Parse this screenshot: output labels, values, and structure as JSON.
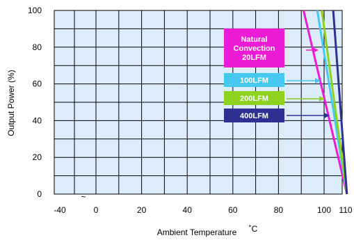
{
  "chart_data": {
    "type": "line",
    "xlabel": "Ambient Temperature",
    "xunit": "˚C",
    "ylabel": "Output Power  (%)",
    "xlim": [
      -40,
      110
    ],
    "ylim": [
      0,
      100
    ],
    "x_ticks": [
      -40,
      0,
      20,
      40,
      60,
      80,
      100,
      110
    ],
    "x_tick_labels": [
      "-40",
      "0",
      "20",
      "40",
      "60",
      "80",
      "100",
      "110"
    ],
    "x_break_marker": "~",
    "y_ticks": [
      0,
      20,
      40,
      60,
      80,
      100
    ],
    "y_tick_labels": [
      "0",
      "20",
      "40",
      "60",
      "80",
      "100"
    ],
    "grid": true,
    "plot_background": "#dcecfa",
    "grid_color": "#000000",
    "series": [
      {
        "name": "Natural Convection 20LFM",
        "label_lines": [
          "Natural",
          "Convection",
          "20LFM"
        ],
        "color": "#ee1bd6",
        "x": [
          91,
          110
        ],
        "y": [
          100,
          0
        ]
      },
      {
        "name": "100LFM",
        "label_lines": [
          "100LFM"
        ],
        "color": "#46c8f0",
        "x": [
          97,
          110
        ],
        "y": [
          100,
          0
        ]
      },
      {
        "name": "200LFM",
        "label_lines": [
          "200LFM"
        ],
        "color": "#8cd21e",
        "x": [
          99,
          110
        ],
        "y": [
          100,
          0
        ]
      },
      {
        "name": "400LFM",
        "label_lines": [
          "400LFM"
        ],
        "color": "#2e3192",
        "x": [
          104,
          110
        ],
        "y": [
          100,
          0
        ]
      }
    ]
  }
}
